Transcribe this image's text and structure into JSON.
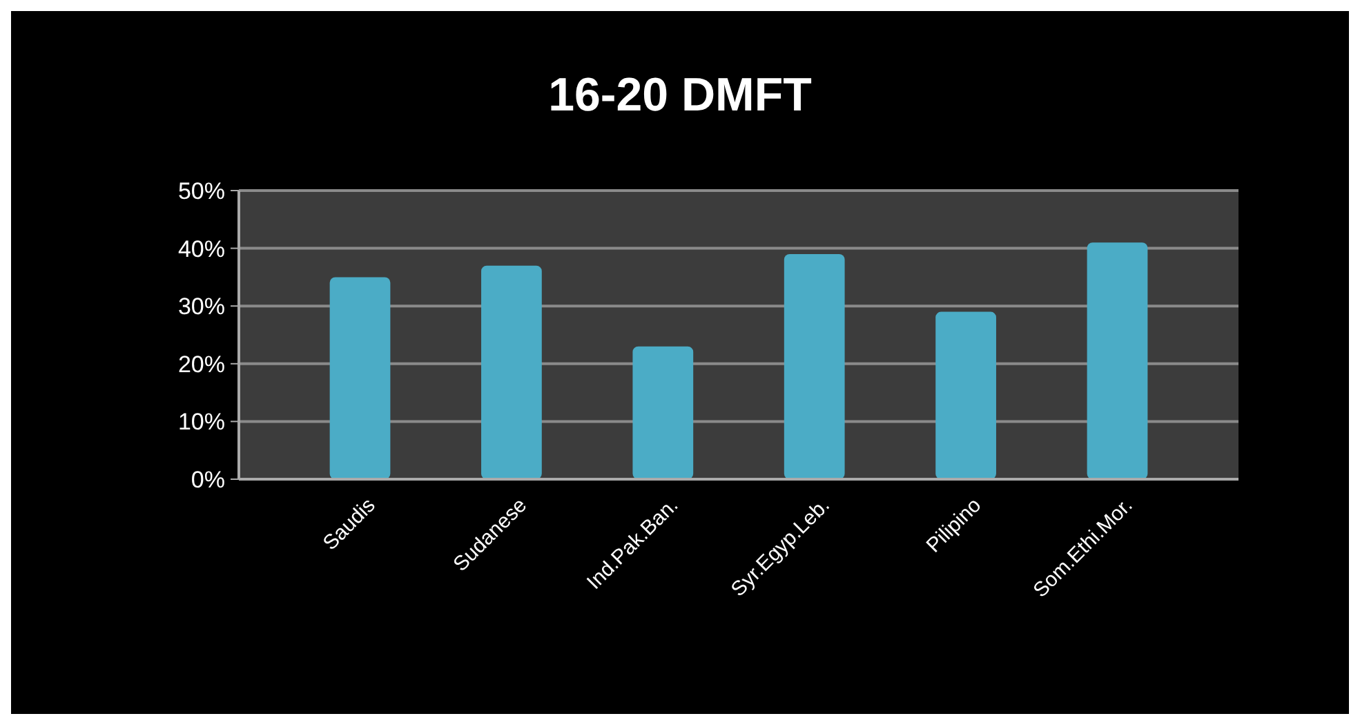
{
  "chart_data": {
    "type": "bar",
    "title": "16-20 DMFT",
    "categories": [
      "Saudis",
      "Sudanese",
      "Ind.Pak.Ban.",
      "Syr.Egyp.Leb.",
      "Pilipino",
      "Som.Ethi.Mor."
    ],
    "values": [
      35,
      37,
      23,
      39,
      29,
      41
    ],
    "color": "#4bacc6",
    "ylim": [
      0,
      50
    ],
    "yticks": [
      {
        "value": 0,
        "label": "0%"
      },
      {
        "value": 10,
        "label": "10%"
      },
      {
        "value": 20,
        "label": "20%"
      },
      {
        "value": 30,
        "label": "30%"
      },
      {
        "value": 40,
        "label": "40%"
      },
      {
        "value": 50,
        "label": "50%"
      }
    ],
    "grid": "y"
  }
}
